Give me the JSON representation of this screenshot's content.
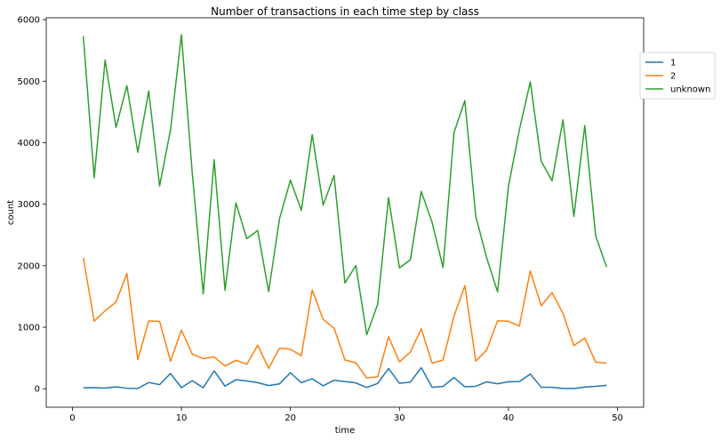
{
  "chart_data": {
    "type": "line",
    "title": "Number of transactions in each time step by class",
    "xlabel": "time",
    "ylabel": "count",
    "xlim": [
      -2.4,
      52.4
    ],
    "ylim": [
      -300,
      6030
    ],
    "xticks": [
      0,
      10,
      20,
      30,
      40,
      50
    ],
    "yticks": [
      0,
      1000,
      2000,
      3000,
      4000,
      5000,
      6000
    ],
    "grid": false,
    "legend_position": "upper-right",
    "x": [
      1,
      2,
      3,
      4,
      5,
      6,
      7,
      8,
      9,
      10,
      11,
      12,
      13,
      14,
      15,
      16,
      17,
      18,
      19,
      20,
      21,
      22,
      23,
      24,
      25,
      26,
      27,
      28,
      29,
      30,
      31,
      32,
      33,
      34,
      35,
      36,
      37,
      38,
      39,
      40,
      41,
      42,
      43,
      44,
      45,
      46,
      47,
      48,
      49
    ],
    "series": [
      {
        "name": "1",
        "color": "#1f77b4",
        "values": [
          17,
          18,
          11,
          30,
          8,
          5,
          102,
          67,
          248,
          18,
          131,
          16,
          291,
          43,
          147,
          126,
          99,
          52,
          80,
          260,
          99,
          163,
          48,
          138,
          117,
          95,
          21,
          86,
          329,
          89,
          109,
          342,
          24,
          38,
          182,
          33,
          40,
          112,
          81,
          114,
          117,
          239,
          26,
          24,
          5,
          4,
          27,
          40,
          56
        ]
      },
      {
        "name": "2",
        "color": "#ff7f0e",
        "values": [
          2130,
          1099,
          1268,
          1410,
          1874,
          472,
          1101,
          1094,
          448,
          953,
          562,
          490,
          518,
          369,
          463,
          398,
          708,
          331,
          662,
          641,
          538,
          1607,
          1126,
          987,
          468,
          421,
          176,
          193,
          845,
          436,
          597,
          975,
          415,
          466,
          1180,
          1677,
          449,
          631,
          1105,
          1097,
          1020,
          1916,
          1349,
          1563,
          1222,
          702,
          824,
          432,
          418
        ]
      },
      {
        "name": "unknown",
        "color": "#2ca02c",
        "values": [
          5733,
          3427,
          5342,
          4249,
          4925,
          3844,
          4840,
          3296,
          4210,
          5754,
          3496,
          1542,
          3722,
          1604,
          3020,
          2440,
          2573,
          1578,
          2764,
          3391,
          2899,
          4131,
          2985,
          3466,
          1719,
          2003,
          880,
          1373,
          3107,
          1965,
          2095,
          3208,
          2700,
          1970,
          4162,
          4684,
          2803,
          2129,
          1574,
          3293,
          4207,
          4989,
          3700,
          3380,
          4371,
          2802,
          4277,
          2482,
          1979
        ]
      }
    ]
  }
}
